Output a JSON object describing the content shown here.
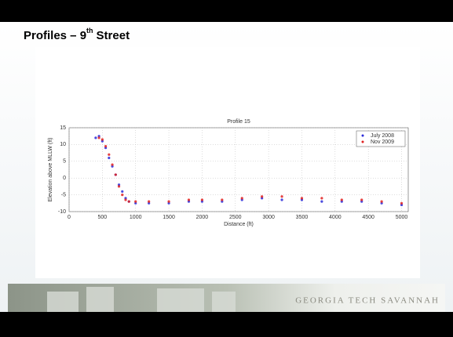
{
  "slide": {
    "title": "Profiles – 9",
    "title_sup": "th",
    "title_rest": "Street",
    "footer": "Georgia Tech Savannah"
  },
  "chart_data": {
    "type": "scatter",
    "title": "Profile 15",
    "x_label": "Distance (ft)",
    "y_label": "Elevation above MLLW (ft)",
    "xlim": [
      0,
      5100
    ],
    "xticks": [
      0,
      500,
      1000,
      1500,
      2000,
      2500,
      3000,
      3500,
      4000,
      4500,
      5000
    ],
    "ylim": [
      -10,
      15
    ],
    "yticks": [
      -10,
      -5,
      0,
      5,
      10,
      15
    ],
    "grid": true,
    "legend": "northeast",
    "series": [
      {
        "name": "July 2008",
        "color": "#2a2ad8",
        "x": [
          400,
          450,
          500,
          550,
          600,
          650,
          700,
          750,
          800,
          850,
          900,
          1000,
          1200,
          1500,
          1800,
          2000,
          2300,
          2600,
          2900,
          3200,
          3500,
          3800,
          4100,
          4400,
          4700,
          5000
        ],
        "values": [
          12,
          12.5,
          11,
          9,
          6,
          3.5,
          1,
          -2,
          -4,
          -6,
          -7,
          -7.5,
          -7.5,
          -7.5,
          -7,
          -7,
          -7,
          -6.5,
          -6,
          -6.5,
          -6.5,
          -7,
          -7,
          -7,
          -7.5,
          -8
        ]
      },
      {
        "name": "Nov 2009",
        "color": "#e02020",
        "x": [
          450,
          500,
          550,
          600,
          650,
          700,
          750,
          800,
          850,
          900,
          1000,
          1200,
          1500,
          1800,
          2000,
          2300,
          2600,
          2900,
          3200,
          3500,
          3800,
          4100,
          4400,
          4700,
          5000
        ],
        "values": [
          12,
          11.5,
          9.5,
          7,
          4,
          1,
          -2.5,
          -5,
          -6.5,
          -7,
          -7,
          -7,
          -7,
          -6.5,
          -6.5,
          -6.5,
          -6,
          -5.5,
          -5.5,
          -6,
          -6,
          -6.5,
          -6.5,
          -7,
          -7.5
        ]
      }
    ]
  }
}
